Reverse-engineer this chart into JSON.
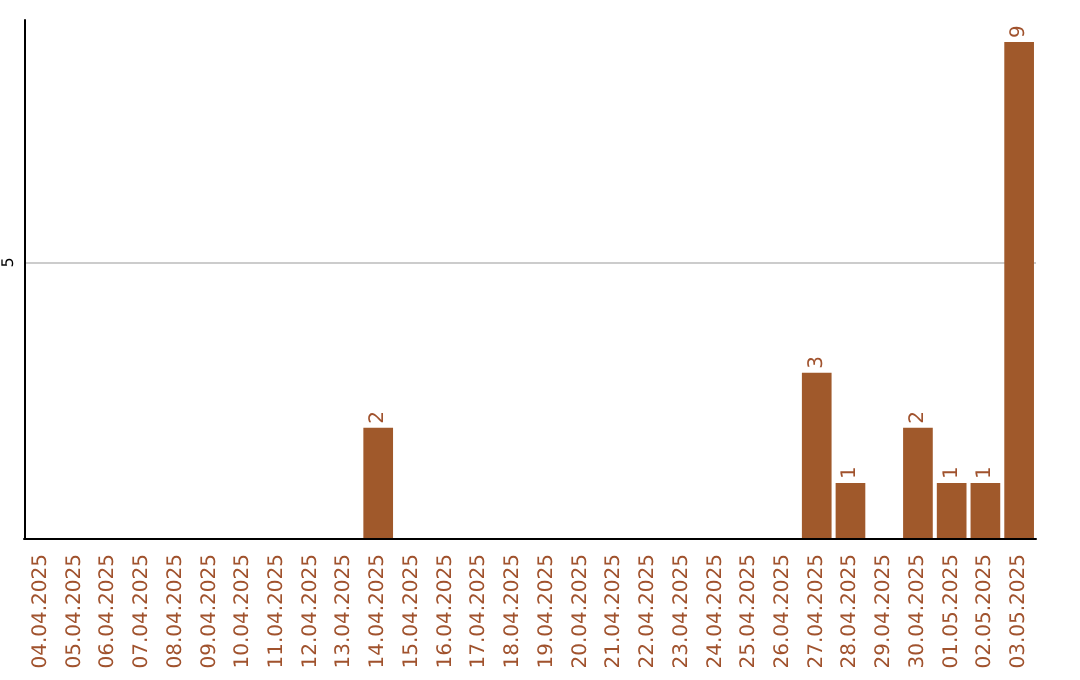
{
  "chart_data": {
    "type": "bar",
    "categories": [
      "04.04.2025",
      "05.04.2025",
      "06.04.2025",
      "07.04.2025",
      "08.04.2025",
      "09.04.2025",
      "10.04.2025",
      "11.04.2025",
      "12.04.2025",
      "13.04.2025",
      "14.04.2025",
      "15.04.2025",
      "16.04.2025",
      "17.04.2025",
      "18.04.2025",
      "19.04.2025",
      "20.04.2025",
      "21.04.2025",
      "22.04.2025",
      "23.04.2025",
      "24.04.2025",
      "25.04.2025",
      "26.04.2025",
      "27.04.2025",
      "28.04.2025",
      "29.04.2025",
      "30.04.2025",
      "01.05.2025",
      "02.05.2025",
      "03.05.2025"
    ],
    "values": [
      0,
      0,
      0,
      0,
      0,
      0,
      0,
      0,
      0,
      0,
      2,
      0,
      0,
      0,
      0,
      0,
      0,
      0,
      0,
      0,
      0,
      0,
      0,
      3,
      1,
      0,
      2,
      1,
      1,
      9
    ],
    "value_labels": [
      null,
      null,
      null,
      null,
      null,
      null,
      null,
      null,
      null,
      null,
      "2",
      null,
      null,
      null,
      null,
      null,
      null,
      null,
      null,
      null,
      null,
      null,
      null,
      "3",
      "1",
      null,
      "2",
      "1",
      "1",
      "9"
    ],
    "color": "#a0592b",
    "ylim": [
      0,
      9.4
    ],
    "yticks": [
      5
    ],
    "grid": true
  }
}
